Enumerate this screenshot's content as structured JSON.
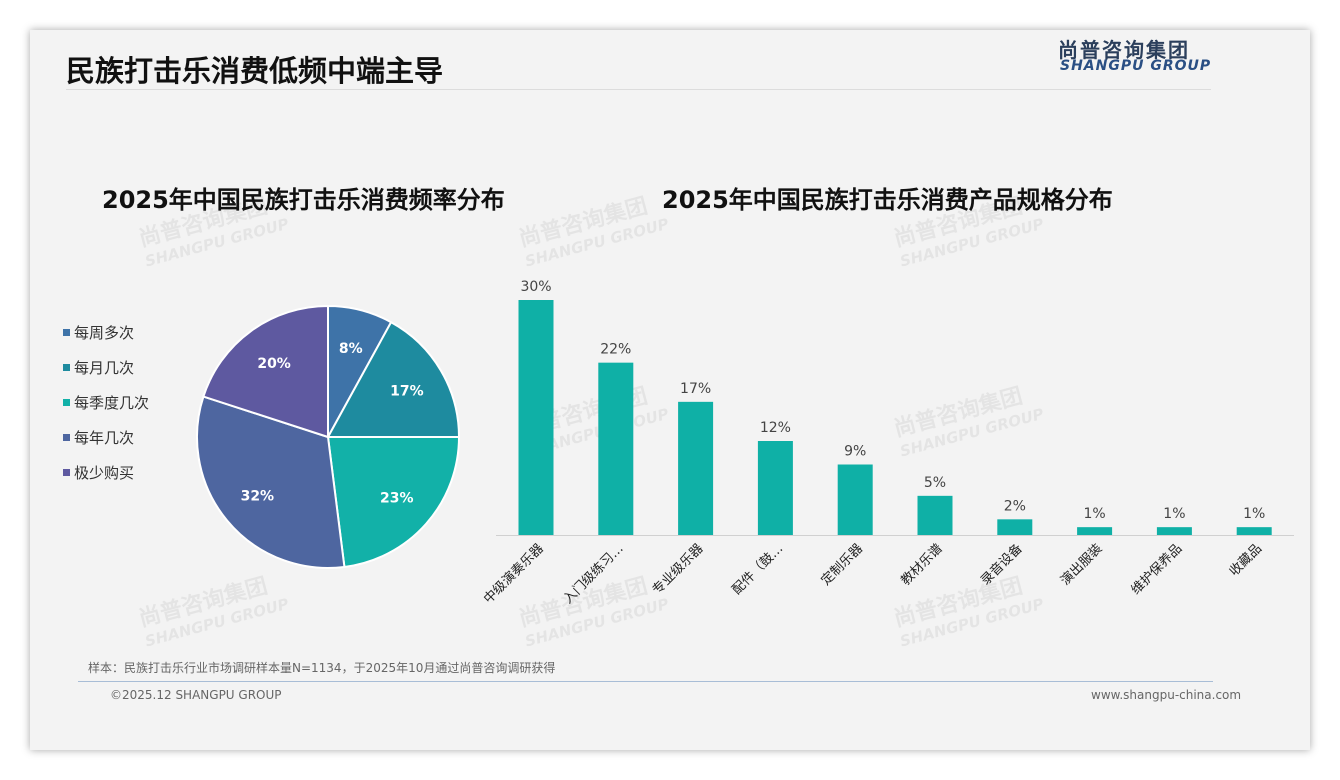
{
  "header": {
    "title": "民族打击乐消费低频中端主导",
    "logo_cn": "尚普咨询集团",
    "logo_en": "SHANGPU GROUP"
  },
  "watermark": {
    "cn": "尚普咨询集团",
    "en": "SHANGPU GROUP"
  },
  "chart_data": [
    {
      "type": "pie",
      "title": "2025年中国民族打击乐消费频率分布",
      "legend_position": "left",
      "categories": [
        "每周多次",
        "每月几次",
        "每季度几次",
        "每年几次",
        "极少购买"
      ],
      "values": [
        8,
        17,
        23,
        32,
        20
      ],
      "labels": [
        "8%",
        "17%",
        "23%",
        "32%",
        "20%"
      ],
      "colors": [
        "#3e73a8",
        "#1e8b9f",
        "#12b1a8",
        "#4e66a0",
        "#5e59a0"
      ]
    },
    {
      "type": "bar",
      "title": "2025年中国民族打击乐消费产品规格分布",
      "categories": [
        "中级演奏乐器",
        "入门级练习…",
        "专业级乐器",
        "配件（鼓…",
        "定制乐器",
        "教材乐谱",
        "录音设备",
        "演出服装",
        "维护保养品",
        "收藏品"
      ],
      "values": [
        30,
        22,
        17,
        12,
        9,
        5,
        2,
        1,
        1,
        1
      ],
      "labels": [
        "30%",
        "22%",
        "17%",
        "12%",
        "9%",
        "5%",
        "2%",
        "1%",
        "1%",
        "1%"
      ],
      "ylim": [
        0,
        30
      ],
      "color": "#0fb0a6",
      "grid": false
    }
  ],
  "footer": {
    "note": "样本：民族打击乐行业市场调研样本量N=1134，于2025年10月通过尚普咨询调研获得",
    "copyright": "©2025.12 SHANGPU GROUP",
    "website": "www.shangpu-china.com"
  }
}
